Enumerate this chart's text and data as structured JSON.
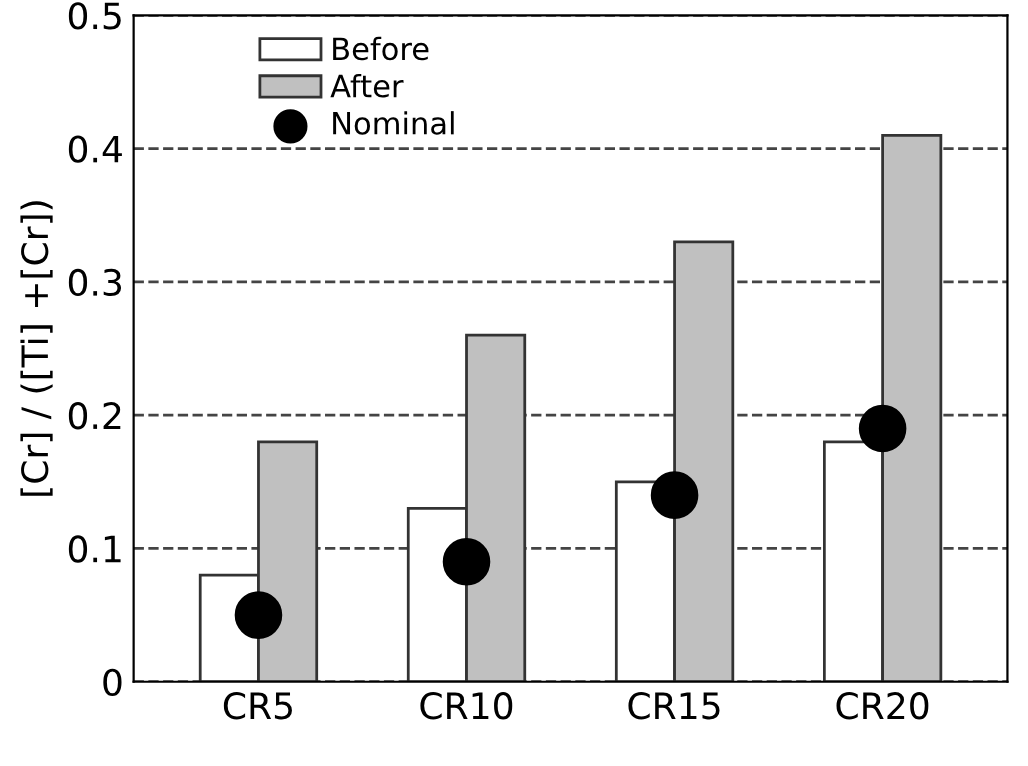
{
  "chart_data": {
    "type": "bar",
    "ylabel": "[Cr] / ([Ti] +[Cr])",
    "categories": [
      "CR5",
      "CR10",
      "CR15",
      "CR20"
    ],
    "series": [
      {
        "name": "Before",
        "color": "#ffffff",
        "values": [
          0.08,
          0.13,
          0.15,
          0.18
        ]
      },
      {
        "name": "After",
        "color": "#c0c0c0",
        "values": [
          0.18,
          0.26,
          0.33,
          0.41
        ]
      },
      {
        "name": "Nominal",
        "type": "scatter",
        "color": "#000000",
        "marker": "circle",
        "x": [
          "CR5",
          "CR10",
          "CR15",
          "CR20"
        ],
        "values": [
          0.05,
          0.09,
          0.14,
          0.19
        ]
      }
    ],
    "ylim": [
      0,
      0.5
    ],
    "yticks": [
      0,
      0.1,
      0.2,
      0.3,
      0.4,
      0.5
    ],
    "grid": "y",
    "legend": "top left"
  }
}
